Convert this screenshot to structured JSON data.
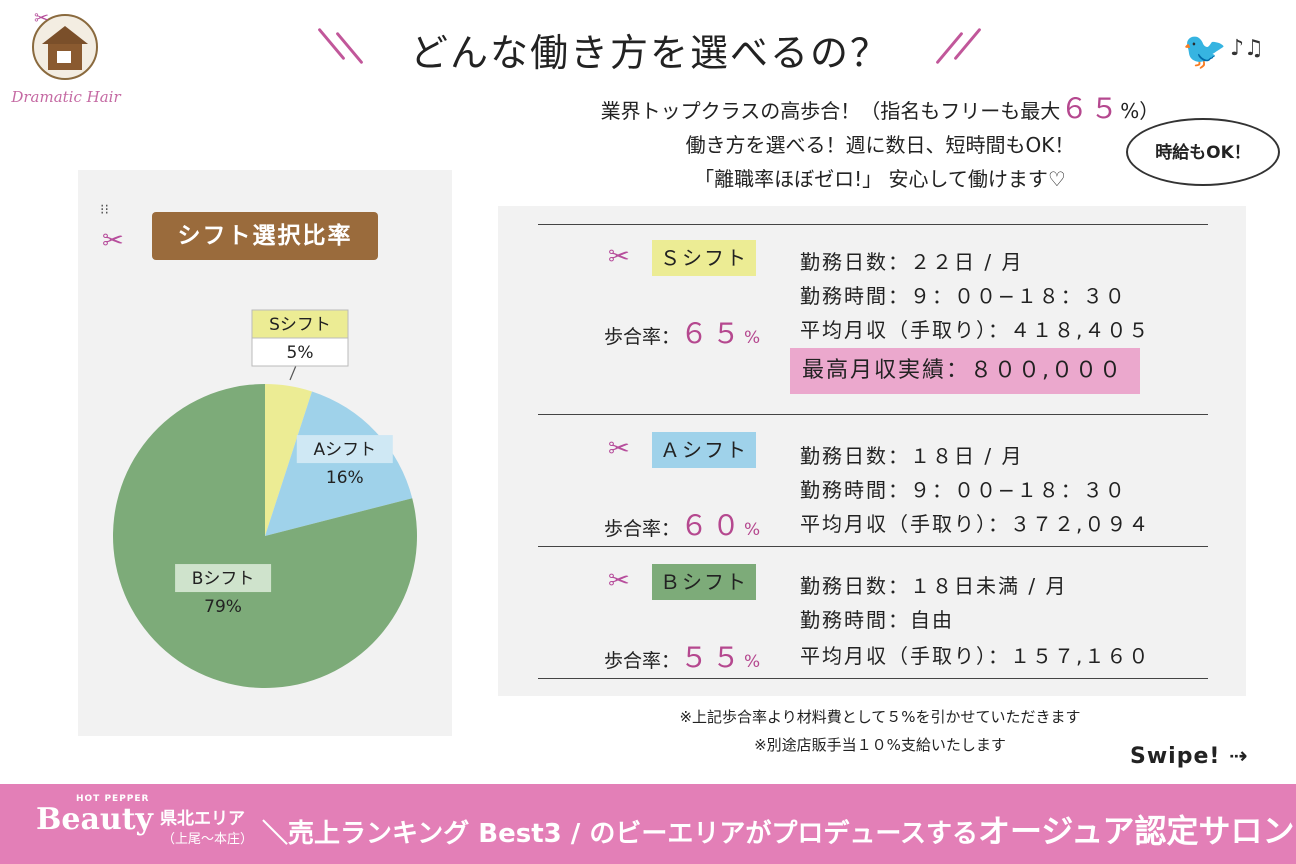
{
  "brand": {
    "logo_text": "Dramatic Hair"
  },
  "title": "どんな働き方を選べるの？",
  "intro": {
    "line1_before": "業界トップクラスの高歩合！（指名もフリーも最大",
    "line1_pct": "６５",
    "line1_after": "%）",
    "line2": "働き方を選べる！週に数日、短時間もOK！",
    "line3": "「離職率ほぼゼロ!」 安心して働けます♡"
  },
  "bubble": "時給もOK！",
  "panel_title": "シフト選択比率",
  "chart_data": {
    "type": "pie",
    "categories": [
      "Sシフト",
      "Aシフト",
      "Bシフト"
    ],
    "values": [
      5,
      16,
      79
    ],
    "value_labels": [
      "5%",
      "16%",
      "79%"
    ],
    "colors": [
      "#ecec94",
      "#9fd2ea",
      "#7dab79"
    ]
  },
  "shifts": [
    {
      "name": "Ｓシフト",
      "color": "#ecec94",
      "rate_label": "歩合率：",
      "rate_value": "６５",
      "rate_unit": "%",
      "days": "勤務日数：２２日 / 月",
      "hours": "勤務時間：９：００−１８：３０",
      "income": "平均月収（手取り）：４１８,４０５",
      "best": "最高月収実績：８００,０００"
    },
    {
      "name": "Ａシフト",
      "color": "#9fd2ea",
      "rate_label": "歩合率：",
      "rate_value": "６０",
      "rate_unit": "%",
      "days": "勤務日数：１８日 / 月",
      "hours": "勤務時間：９：００−１８：３０",
      "income": "平均月収（手取り）：３７２,０９４"
    },
    {
      "name": "Ｂシフト",
      "color": "#7dab79",
      "rate_label": "歩合率：",
      "rate_value": "５５",
      "rate_unit": "%",
      "days": "勤務日数：１８日未満 / 月",
      "hours": "勤務時間：自由",
      "income": "平均月収（手取り）：１５７,１６０"
    }
  ],
  "footnotes": [
    "※上記歩合率より材料費として５%を引かせていただきます",
    "※別途店販手当１０%支給いたします"
  ],
  "swipe": "Swipe!",
  "footer": {
    "hp": "HOT PEPPER",
    "beauty": "Beauty",
    "area": "県北エリア",
    "area_sub": "（上尾〜本庄）",
    "slogan_a": "＼売上ランキング Best3 / のビーエリアがプロデュースする",
    "slogan_b": "オージュア認定サロン！"
  }
}
